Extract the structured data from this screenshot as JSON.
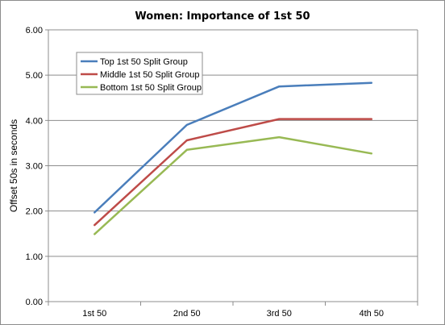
{
  "chart_data": {
    "type": "line",
    "title": "Women: Importance of 1st 50",
    "xlabel": "",
    "ylabel": "Offset 50s in seconds",
    "categories": [
      "1st 50",
      "2nd 50",
      "3rd 50",
      "4th 50"
    ],
    "ylim": [
      0,
      6
    ],
    "yticks": [
      "0.00",
      "1.00",
      "2.00",
      "3.00",
      "4.00",
      "5.00",
      "6.00"
    ],
    "grid": true,
    "legend_position": "top-left",
    "series": [
      {
        "name": "Top 1st 50 Split Group",
        "color": "#4a7ebb",
        "values": [
          1.97,
          3.9,
          4.75,
          4.83
        ]
      },
      {
        "name": "Middle 1st 50 Split Group",
        "color": "#be4b48",
        "values": [
          1.69,
          3.56,
          4.03,
          4.03
        ]
      },
      {
        "name": "Bottom 1st 50 Split Group",
        "color": "#98b954",
        "values": [
          1.49,
          3.35,
          3.63,
          3.27
        ]
      }
    ]
  }
}
